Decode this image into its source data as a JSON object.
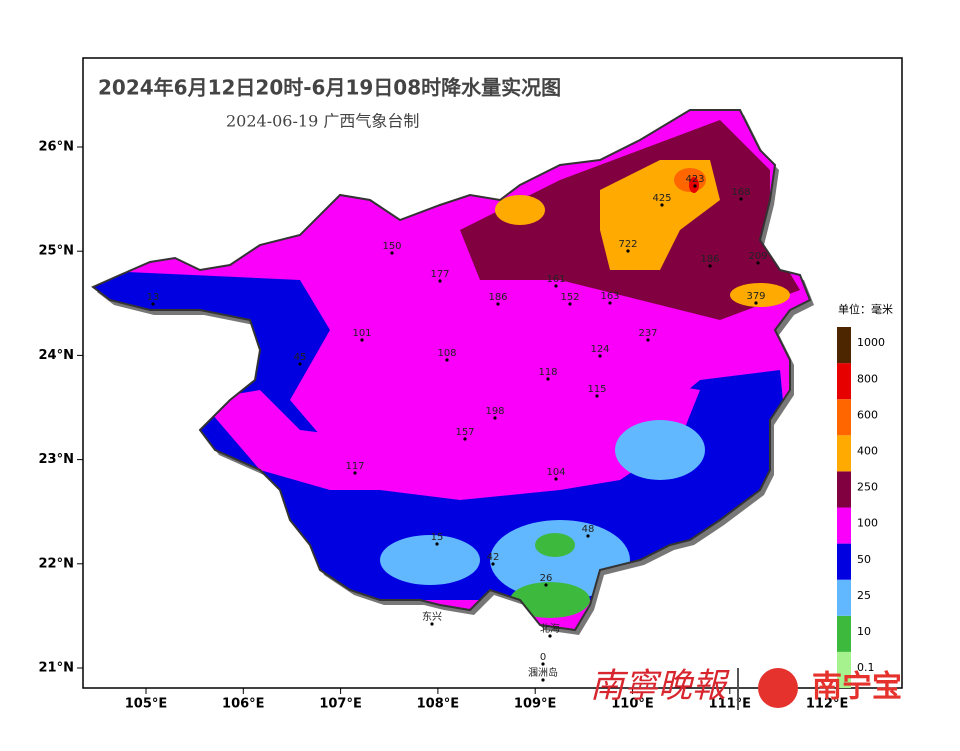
{
  "map": {
    "title": "2024年6月12日20时-6月19日08时降水量实况图",
    "subtitle": "2024-06-19  广西气象台制",
    "lat_ticks": [
      "26°N",
      "25°N",
      "24°N",
      "23°N",
      "22°N",
      "21°N"
    ],
    "lon_ticks": [
      "105°E",
      "106°E",
      "107°E",
      "108°E",
      "109°E",
      "110°E",
      "111°E",
      "112°E"
    ],
    "legend": {
      "unit": "单位：毫米",
      "levels": [
        {
          "label": "0.1",
          "color": "#a6f28f"
        },
        {
          "label": "10",
          "color": "#3dba3d"
        },
        {
          "label": "25",
          "color": "#61b8ff"
        },
        {
          "label": "50",
          "color": "#0000e1"
        },
        {
          "label": "100",
          "color": "#fa00fa"
        },
        {
          "label": "250",
          "color": "#800040"
        },
        {
          "label": "400",
          "color": "#ffaa00"
        },
        {
          "label": "600",
          "color": "#ff6600"
        },
        {
          "label": "800",
          "color": "#e60000"
        },
        {
          "label": "1000",
          "color": "#4d2600"
        }
      ]
    },
    "stations": [
      "150",
      "177",
      "186",
      "161",
      "152",
      "163",
      "722",
      "425",
      "423",
      "168",
      "209",
      "186",
      "379",
      "237",
      "124",
      "118",
      "115",
      "198",
      "157",
      "117",
      "108",
      "101",
      "45",
      "13",
      "104",
      "26",
      "42",
      "15",
      "48",
      "0",
      "东兴",
      "北海",
      "涠洲岛"
    ],
    "watermark": [
      "南寧晚報",
      "南宁宝"
    ]
  }
}
